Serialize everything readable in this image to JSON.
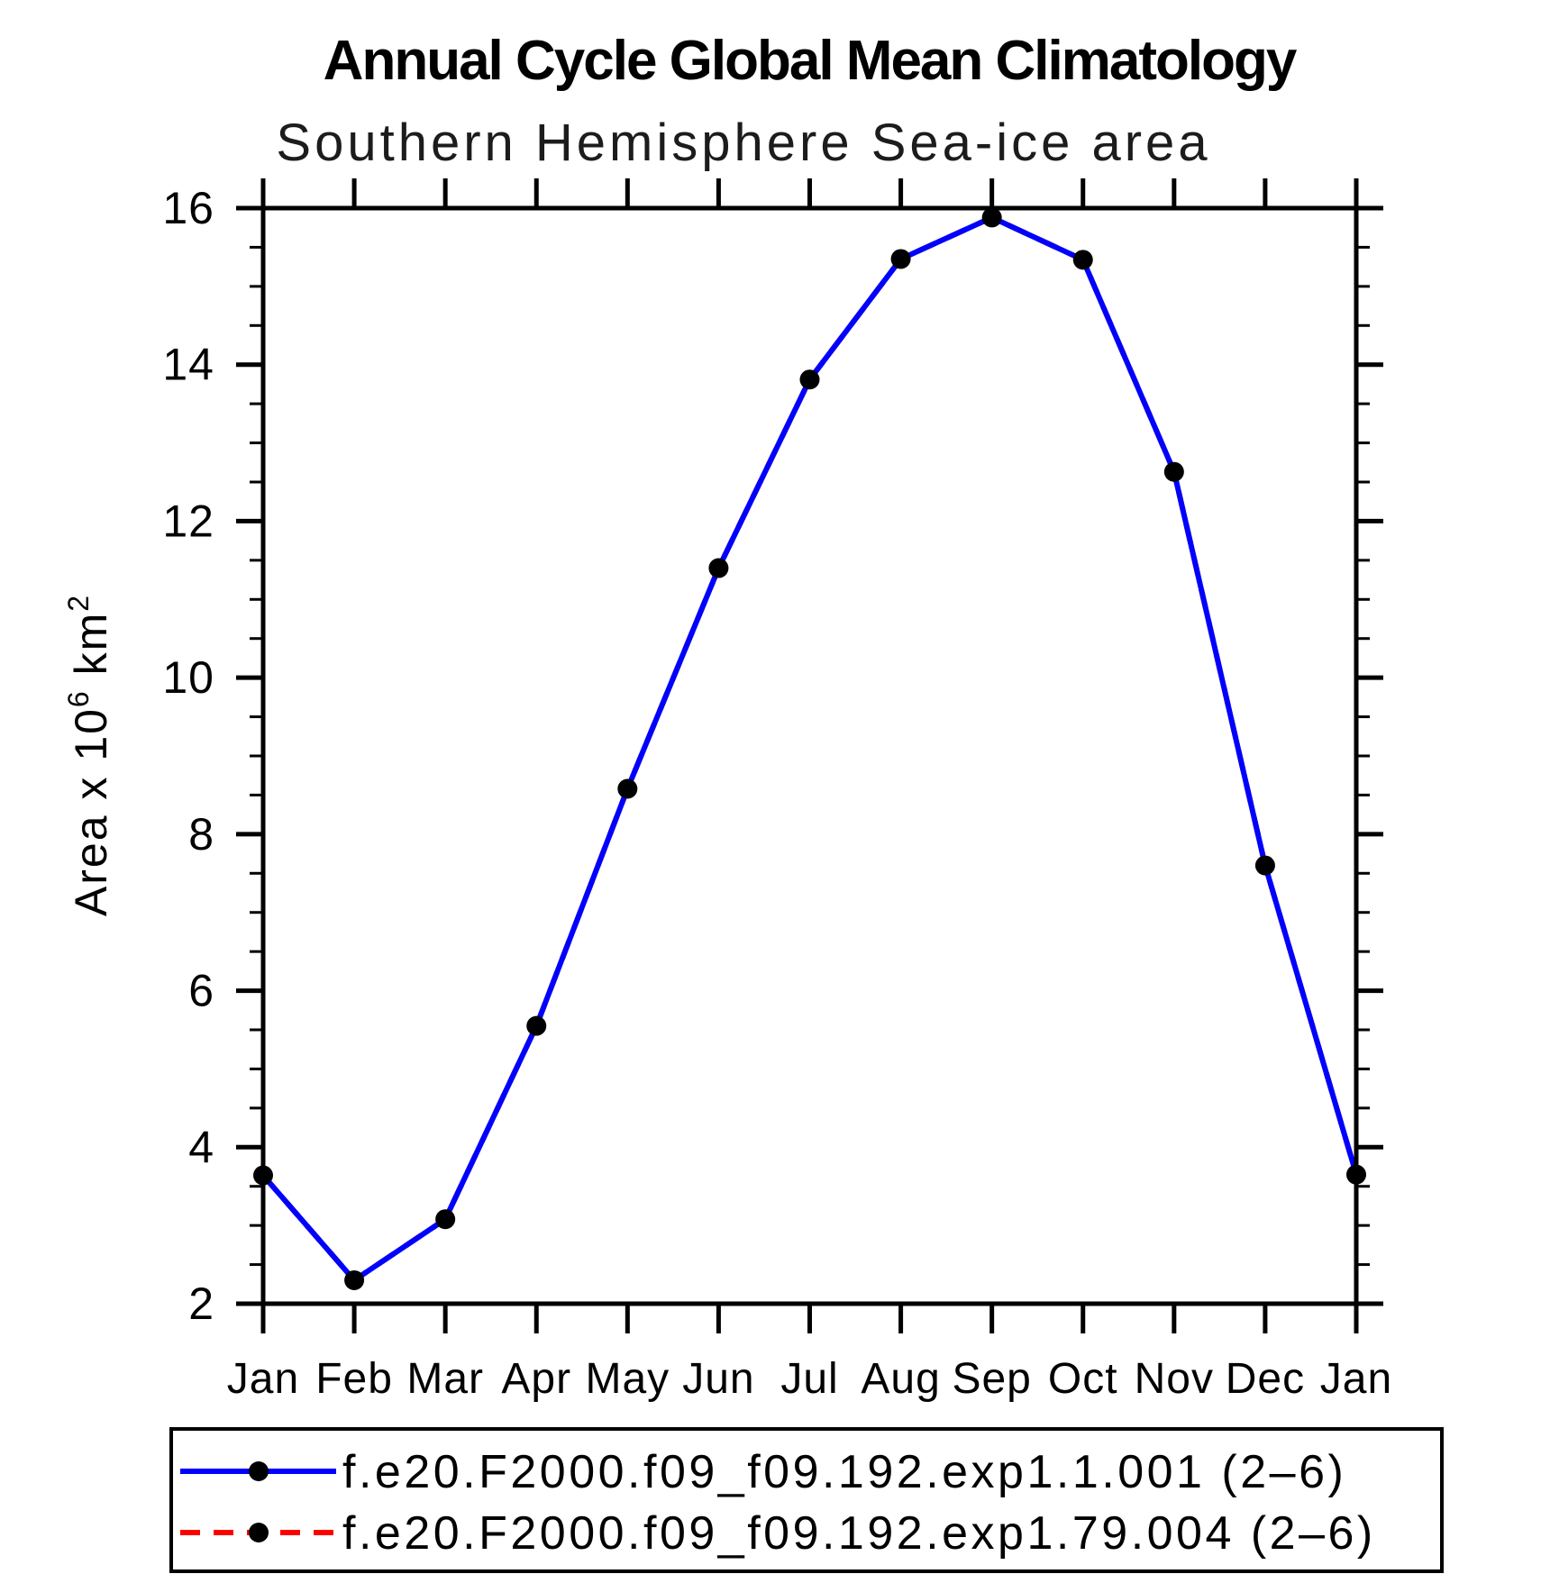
{
  "header": {
    "title": "Annual Cycle Global Mean Climatology",
    "subtitle": "Southern Hemisphere Sea-ice area"
  },
  "chart_data": {
    "type": "line",
    "title": "Annual Cycle Global Mean Climatology",
    "subtitle": "Southern Hemisphere Sea-ice area",
    "xlabel": "",
    "ylabel": "Area x 10^6 km^2",
    "ylabel_parts": {
      "base1": "Area x 10",
      "sup1": "6",
      "base2": " km",
      "sup2": "2"
    },
    "categories": [
      "Jan",
      "Feb",
      "Mar",
      "Apr",
      "May",
      "Jun",
      "Jul",
      "Aug",
      "Sep",
      "Oct",
      "Nov",
      "Dec",
      "Jan"
    ],
    "series": [
      {
        "name": "f.e20.F2000.f09_f09.192.exp1.1.001 (2–6)",
        "color": "#0000ff",
        "line_style": "solid",
        "marker": "filled-circle",
        "marker_color": "#000000",
        "values": [
          3.64,
          2.3,
          3.08,
          5.55,
          8.58,
          11.4,
          13.81,
          15.35,
          15.88,
          15.34,
          12.63,
          7.6,
          3.65
        ]
      },
      {
        "name": "f.e20.F2000.f09_f09.192.exp1.79.004 (2–6)",
        "color": "#ff0000",
        "line_style": "dashed",
        "marker": "filled-circle",
        "marker_color": "#000000",
        "values": [
          3.64,
          2.3,
          3.08,
          5.55,
          8.58,
          11.4,
          13.81,
          15.35,
          15.88,
          15.34,
          12.63,
          7.6,
          3.65
        ],
        "drawn_beneath_series_0": true
      }
    ],
    "ylim": [
      2,
      16
    ],
    "y_major_step": 2,
    "y_minor_step": 0.5,
    "y_major_tick_labels": [
      "2",
      "4",
      "6",
      "8",
      "10",
      "12",
      "14",
      "16"
    ],
    "grid": "off",
    "axis_color": "#000000",
    "legend_position": "bottom-left-box"
  },
  "legend": {
    "entries": [
      {
        "label": "f.e20.F2000.f09_f09.192.exp1.1.001 (2–6)"
      },
      {
        "label": "f.e20.F2000.f09_f09.192.exp1.79.004 (2–6)"
      }
    ]
  }
}
